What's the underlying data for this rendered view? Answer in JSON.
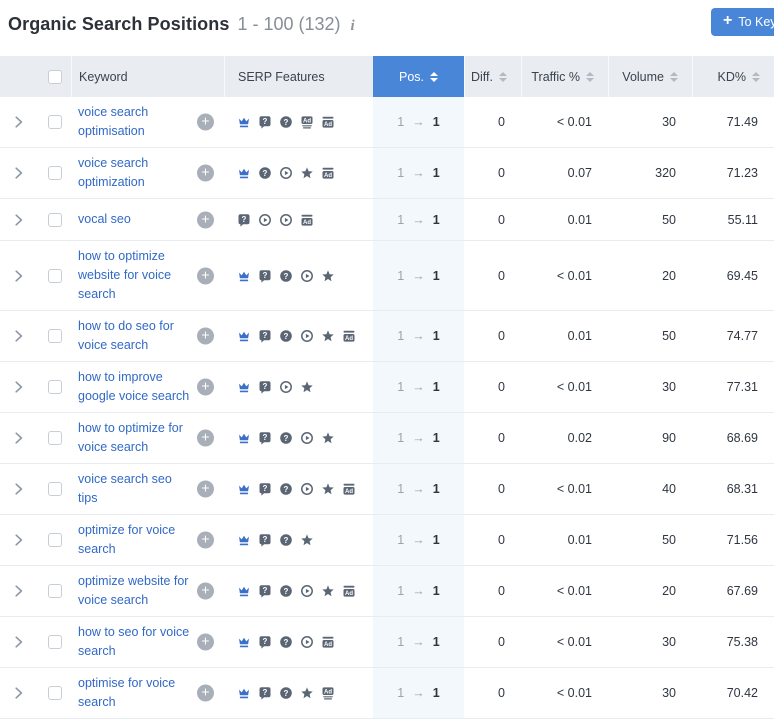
{
  "colors": {
    "accent": "#4a86d8",
    "button": "#3f82d9",
    "link": "#3169c6",
    "icon_gray": "#5b6674",
    "crown_blue": "#3a70c9",
    "pos_column_bg": "#f3f8fd",
    "header_bg": "#e9edf1"
  },
  "header": {
    "title": "Organic Search Positions",
    "range": "1 - 100 (132)",
    "info_icon": "i",
    "to_keywords_button": {
      "plus": "+",
      "label": "To Key"
    }
  },
  "table": {
    "columns": {
      "keyword": "Keyword",
      "serp_features": "SERP Features",
      "pos": "Pos.",
      "diff": "Diff.",
      "traffic": "Traffic %",
      "volume": "Volume",
      "kd": "KD%"
    },
    "pos_arrow": "→",
    "rows": [
      {
        "keyword": "voice search optimisation",
        "serp_features": [
          "featured-snippet",
          "people-also-ask",
          "faq",
          "ads-bottom",
          "ads-top"
        ],
        "pos_from": "1",
        "pos_to": "1",
        "diff": "0",
        "traffic": "< 0.01",
        "volume": "30",
        "kd": "71.49"
      },
      {
        "keyword": "voice search optimization",
        "serp_features": [
          "featured-snippet",
          "faq",
          "video",
          "reviews",
          "ads-top"
        ],
        "pos_from": "1",
        "pos_to": "1",
        "diff": "0",
        "traffic": "0.07",
        "volume": "320",
        "kd": "71.23"
      },
      {
        "keyword": "vocal seo",
        "serp_features": [
          "people-also-ask",
          "video",
          "video",
          "ads-top"
        ],
        "pos_from": "1",
        "pos_to": "1",
        "diff": "0",
        "traffic": "0.01",
        "volume": "50",
        "kd": "55.11"
      },
      {
        "keyword": "how to optimize website for voice search",
        "serp_features": [
          "featured-snippet",
          "people-also-ask",
          "faq",
          "video",
          "reviews"
        ],
        "pos_from": "1",
        "pos_to": "1",
        "diff": "0",
        "traffic": "< 0.01",
        "volume": "20",
        "kd": "69.45"
      },
      {
        "keyword": "how to do seo for voice search",
        "serp_features": [
          "featured-snippet",
          "people-also-ask",
          "faq",
          "video",
          "reviews",
          "ads-top"
        ],
        "pos_from": "1",
        "pos_to": "1",
        "diff": "0",
        "traffic": "0.01",
        "volume": "50",
        "kd": "74.77"
      },
      {
        "keyword": "how to improve google voice search",
        "serp_features": [
          "featured-snippet",
          "people-also-ask",
          "video",
          "reviews"
        ],
        "pos_from": "1",
        "pos_to": "1",
        "diff": "0",
        "traffic": "< 0.01",
        "volume": "30",
        "kd": "77.31"
      },
      {
        "keyword": "how to optimize for voice search",
        "serp_features": [
          "featured-snippet",
          "people-also-ask",
          "faq",
          "video",
          "reviews"
        ],
        "pos_from": "1",
        "pos_to": "1",
        "diff": "0",
        "traffic": "0.02",
        "volume": "90",
        "kd": "68.69"
      },
      {
        "keyword": "voice search seo tips",
        "serp_features": [
          "featured-snippet",
          "people-also-ask",
          "faq",
          "video",
          "reviews",
          "ads-top"
        ],
        "pos_from": "1",
        "pos_to": "1",
        "diff": "0",
        "traffic": "< 0.01",
        "volume": "40",
        "kd": "68.31"
      },
      {
        "keyword": "optimize for voice search",
        "serp_features": [
          "featured-snippet",
          "people-also-ask",
          "faq",
          "reviews"
        ],
        "pos_from": "1",
        "pos_to": "1",
        "diff": "0",
        "traffic": "0.01",
        "volume": "50",
        "kd": "71.56"
      },
      {
        "keyword": "optimize website for voice search",
        "serp_features": [
          "featured-snippet",
          "people-also-ask",
          "faq",
          "video",
          "reviews",
          "ads-top"
        ],
        "pos_from": "1",
        "pos_to": "1",
        "diff": "0",
        "traffic": "< 0.01",
        "volume": "20",
        "kd": "67.69"
      },
      {
        "keyword": "how to seo for voice search",
        "serp_features": [
          "featured-snippet",
          "people-also-ask",
          "faq",
          "video",
          "ads-top"
        ],
        "pos_from": "1",
        "pos_to": "1",
        "diff": "0",
        "traffic": "< 0.01",
        "volume": "30",
        "kd": "75.38"
      },
      {
        "keyword": "optimise for voice search",
        "serp_features": [
          "featured-snippet",
          "people-also-ask",
          "faq",
          "reviews",
          "ads-bottom"
        ],
        "pos_from": "1",
        "pos_to": "1",
        "diff": "0",
        "traffic": "< 0.01",
        "volume": "30",
        "kd": "70.42"
      }
    ]
  }
}
